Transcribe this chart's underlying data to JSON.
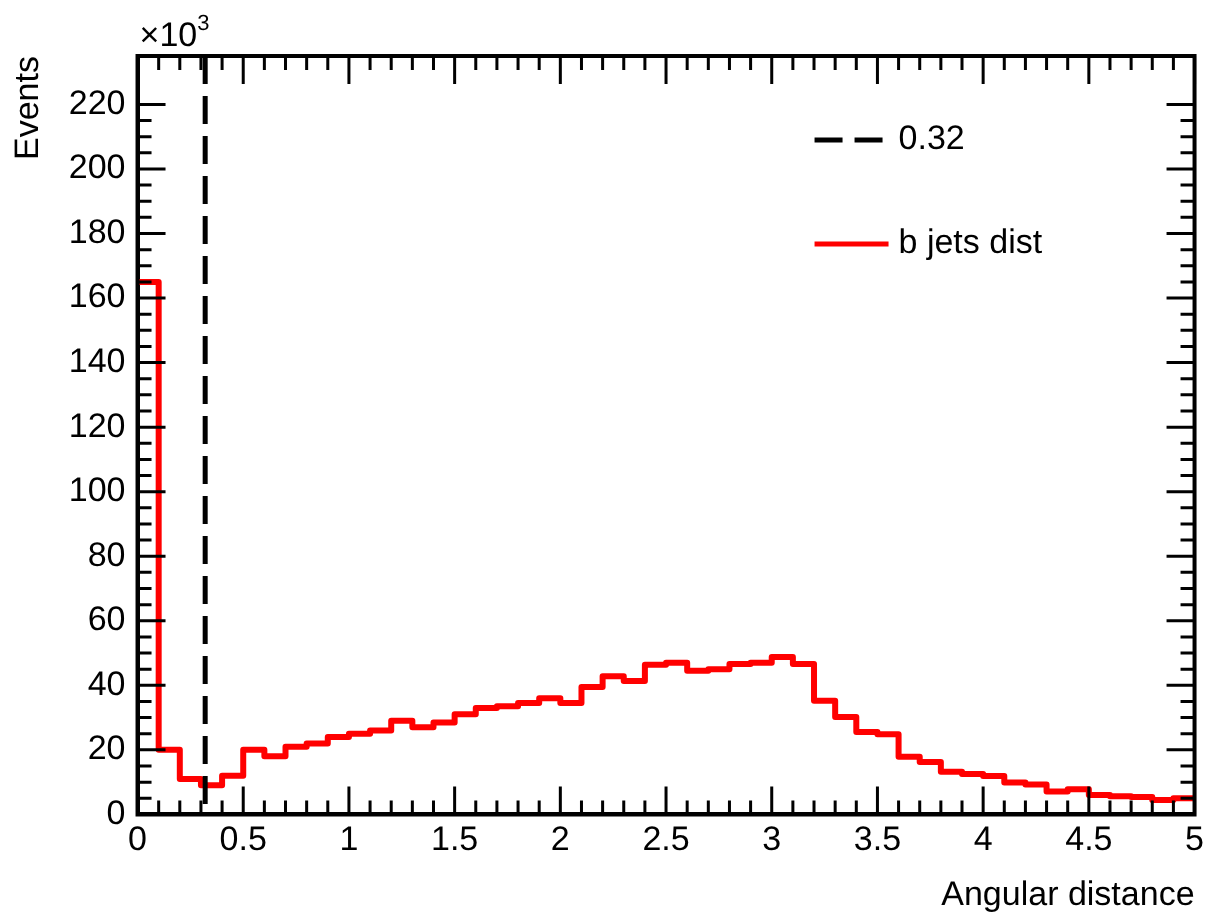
{
  "chart_data": {
    "type": "histogram",
    "xlabel": "Angular distance",
    "ylabel": "Events",
    "annotations": [
      "×10$^{3}$"
    ],
    "bins": [
      0,
      0.1,
      0.2,
      0.3,
      0.4,
      0.5,
      0.6,
      0.7,
      0.8,
      0.9,
      1.0,
      1.1,
      1.2,
      1.3,
      1.4,
      1.5,
      1.6,
      1.7,
      1.8,
      1.9,
      2.0,
      2.1,
      2.2,
      2.3,
      2.4,
      2.5,
      2.6,
      2.7,
      2.8,
      2.9,
      3.0,
      3.1,
      3.2,
      3.3,
      3.4,
      3.5,
      3.6,
      3.7,
      3.8,
      3.9,
      4.0,
      4.1,
      4.2,
      4.3,
      4.4,
      4.5,
      4.6,
      4.7,
      4.8,
      4.9,
      5.0
    ],
    "series": [
      {
        "name": "b jets dist",
        "color": "#ff0000",
        "values": [
          165,
          20,
          11,
          9,
          12,
          20,
          18,
          21,
          22,
          24,
          25,
          26,
          29,
          27,
          28.5,
          31,
          33,
          33.5,
          34.5,
          36,
          34.5,
          39.5,
          42.8,
          41.3,
          46.4,
          47,
          44.5,
          45,
          46.6,
          47,
          48.8,
          46.6,
          35.2,
          30.2,
          25.5,
          24.8,
          17.9,
          16.2,
          13.2,
          12.5,
          11.9,
          9.9,
          9.3,
          7.1,
          7.8,
          6,
          5.6,
          5.4,
          4.5,
          5
        ]
      }
    ],
    "ref_lines": [
      {
        "axis": "x",
        "value": 0.32,
        "label": "0.32",
        "color": "#000000",
        "line_style": "dashed"
      }
    ],
    "xlim": [
      0,
      5
    ],
    "xticks": [
      0,
      0.5,
      1,
      1.5,
      2,
      2.5,
      3,
      3.5,
      4,
      4.5,
      5
    ],
    "ylim": [
      0,
      235
    ],
    "yticks": [
      0,
      20,
      40,
      60,
      80,
      100,
      120,
      140,
      160,
      180,
      200,
      220
    ],
    "grid": false,
    "legend": "top right"
  }
}
